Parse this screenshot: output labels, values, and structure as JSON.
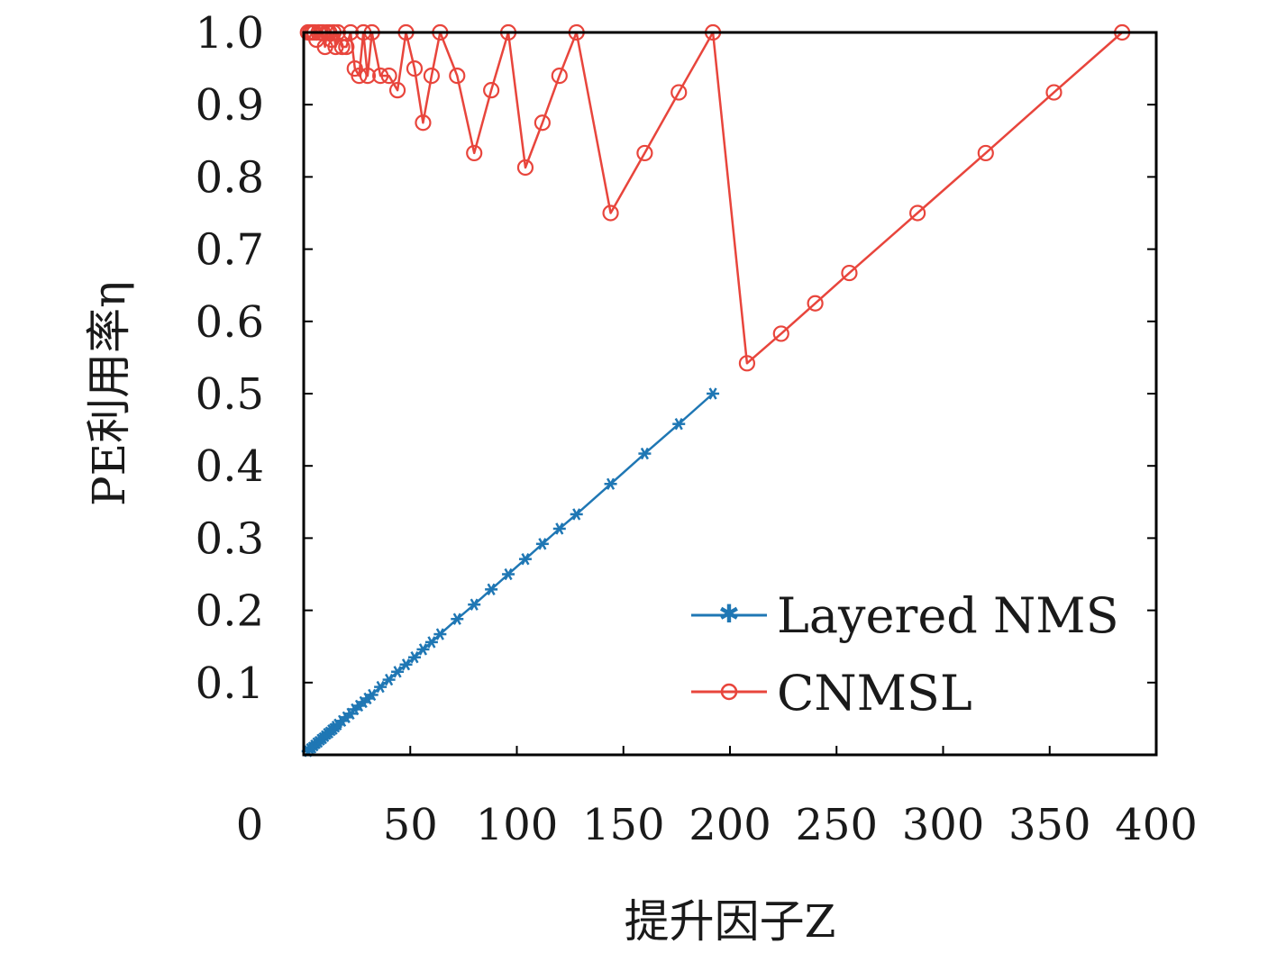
{
  "chart_data": {
    "type": "line",
    "xlabel": "提升因子Z",
    "ylabel": "PE利用率η",
    "xlim": [
      0,
      400
    ],
    "ylim": [
      0,
      1.0
    ],
    "x_ticks": [
      0,
      50,
      100,
      150,
      200,
      250,
      300,
      350,
      400
    ],
    "y_ticks": [
      0.1,
      0.2,
      0.3,
      0.4,
      0.5,
      0.6,
      0.7,
      0.8,
      0.9,
      1.0
    ],
    "x_tick_labels": [
      "0",
      "50",
      "100",
      "150",
      "200",
      "250",
      "300",
      "350",
      "400"
    ],
    "y_tick_labels": [
      "0.1",
      "0.2",
      "0.3",
      "0.4",
      "0.5",
      "0.6",
      "0.7",
      "0.8",
      "0.9",
      "1.0"
    ],
    "grid": false,
    "legend_position": "bottom-right",
    "series": [
      {
        "name": "Layered NMS",
        "color": "#1f77b4",
        "marker": "asterisk",
        "x": [
          2,
          3,
          4,
          5,
          6,
          7,
          8,
          9,
          10,
          11,
          12,
          13,
          14,
          15,
          16,
          18,
          20,
          22,
          24,
          26,
          28,
          30,
          32,
          36,
          40,
          44,
          48,
          52,
          56,
          60,
          64,
          72,
          80,
          88,
          96,
          104,
          112,
          120,
          128,
          144,
          160,
          176,
          192
        ],
        "y": [
          0.005,
          0.008,
          0.01,
          0.013,
          0.016,
          0.018,
          0.021,
          0.023,
          0.026,
          0.029,
          0.031,
          0.034,
          0.036,
          0.039,
          0.042,
          0.047,
          0.052,
          0.057,
          0.063,
          0.068,
          0.073,
          0.078,
          0.083,
          0.094,
          0.104,
          0.115,
          0.125,
          0.135,
          0.146,
          0.156,
          0.167,
          0.188,
          0.208,
          0.229,
          0.25,
          0.271,
          0.292,
          0.313,
          0.333,
          0.375,
          0.417,
          0.458,
          0.5
        ]
      },
      {
        "name": "CNMSL",
        "color": "#e8453c",
        "marker": "circle",
        "x": [
          2,
          3,
          4,
          5,
          6,
          7,
          8,
          9,
          10,
          11,
          12,
          13,
          14,
          15,
          16,
          18,
          20,
          22,
          24,
          26,
          28,
          30,
          32,
          36,
          40,
          44,
          48,
          52,
          56,
          60,
          64,
          72,
          80,
          88,
          96,
          104,
          112,
          120,
          128,
          144,
          160,
          176,
          192,
          208,
          224,
          240,
          256,
          288,
          320,
          352,
          384
        ],
        "y": [
          1.0,
          1.0,
          1.0,
          1.0,
          0.99,
          1.0,
          1.0,
          1.0,
          0.98,
          1.0,
          1.0,
          0.99,
          1.0,
          0.98,
          1.0,
          0.98,
          0.98,
          1.0,
          0.95,
          0.94,
          1.0,
          0.94,
          1.0,
          0.94,
          0.94,
          0.92,
          1.0,
          0.95,
          0.875,
          0.94,
          1.0,
          0.94,
          0.833,
          0.92,
          1.0,
          0.813,
          0.875,
          0.94,
          1.0,
          0.75,
          0.833,
          0.917,
          1.0,
          0.542,
          0.583,
          0.625,
          0.667,
          0.75,
          0.833,
          0.917,
          1.0
        ]
      }
    ]
  }
}
